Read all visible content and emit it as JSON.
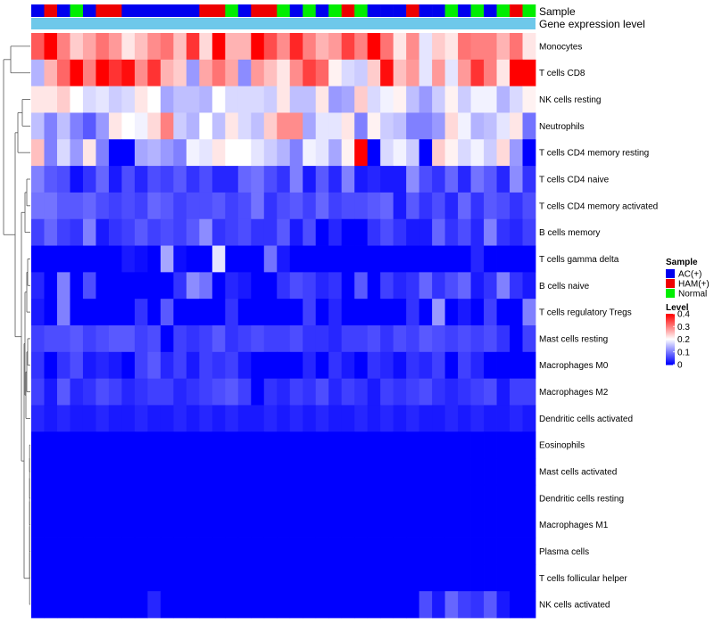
{
  "chart_data": {
    "type": "heatmap",
    "title": "",
    "annotations": {
      "sample_label": "Sample",
      "gene_expression_label": "Gene expression level",
      "gene_expression_color": "#6ec8ea",
      "sample_groups": [
        "AC",
        "HAM",
        "AC",
        "Normal",
        "AC",
        "HAM",
        "HAM",
        "AC",
        "AC",
        "AC",
        "AC",
        "AC",
        "AC",
        "HAM",
        "HAM",
        "Normal",
        "AC",
        "HAM",
        "HAM",
        "Normal",
        "AC",
        "Normal",
        "AC",
        "Normal",
        "HAM",
        "Normal",
        "AC",
        "AC",
        "AC",
        "HAM",
        "AC",
        "AC",
        "Normal",
        "AC",
        "Normal",
        "AC",
        "Normal",
        "HAM",
        "Normal"
      ]
    },
    "rows": [
      "Monocytes",
      "T cells CD8",
      "NK cells resting",
      "Neutrophils",
      "T cells CD4 memory resting",
      "T cells CD4 naive",
      "T cells CD4 memory activated",
      "B cells memory",
      "T cells gamma delta",
      "B cells naive",
      "T cells regulatory  Tregs",
      "Mast cells resting",
      "Macrophages M0",
      "Macrophages M2",
      "Dendritic cells activated",
      "Eosinophils",
      "Mast cells activated",
      "Dendritic cells resting",
      "Macrophages M1",
      "Plasma cells",
      "T cells follicular helper",
      "NK cells activated"
    ],
    "n_columns": 39,
    "values": [
      [
        0.33,
        0.4,
        0.3,
        0.24,
        0.27,
        0.31,
        0.28,
        0.22,
        0.25,
        0.29,
        0.31,
        0.25,
        0.36,
        0.23,
        0.4,
        0.26,
        0.26,
        0.4,
        0.34,
        0.29,
        0.37,
        0.3,
        0.26,
        0.28,
        0.35,
        0.3,
        0.4,
        0.31,
        0.22,
        0.29,
        0.18,
        0.24,
        0.22,
        0.31,
        0.3,
        0.3,
        0.26,
        0.31,
        0.22
      ],
      [
        0.14,
        0.26,
        0.32,
        0.4,
        0.3,
        0.4,
        0.36,
        0.39,
        0.29,
        0.36,
        0.26,
        0.24,
        0.12,
        0.27,
        0.31,
        0.27,
        0.11,
        0.28,
        0.25,
        0.22,
        0.29,
        0.35,
        0.32,
        0.21,
        0.17,
        0.16,
        0.24,
        0.39,
        0.25,
        0.28,
        0.18,
        0.28,
        0.18,
        0.28,
        0.36,
        0.3,
        0.22,
        0.4,
        0.4
      ],
      [
        0.22,
        0.22,
        0.24,
        0.2,
        0.17,
        0.18,
        0.16,
        0.17,
        0.22,
        0.2,
        0.13,
        0.15,
        0.15,
        0.14,
        0.2,
        0.17,
        0.17,
        0.17,
        0.16,
        0.22,
        0.15,
        0.15,
        0.22,
        0.12,
        0.13,
        0.24,
        0.17,
        0.19,
        0.21,
        0.15,
        0.12,
        0.16,
        0.21,
        0.16,
        0.19,
        0.19,
        0.14,
        0.17,
        0.21
      ],
      [
        0.15,
        0.1,
        0.15,
        0.1,
        0.07,
        0.12,
        0.22,
        0.2,
        0.19,
        0.23,
        0.3,
        0.16,
        0.14,
        0.2,
        0.15,
        0.22,
        0.17,
        0.15,
        0.24,
        0.29,
        0.29,
        0.13,
        0.18,
        0.18,
        0.22,
        0.1,
        0.21,
        0.16,
        0.15,
        0.1,
        0.1,
        0.12,
        0.23,
        0.19,
        0.14,
        0.15,
        0.18,
        0.22,
        0.09
      ],
      [
        0.25,
        0.1,
        0.17,
        0.12,
        0.22,
        0.1,
        0.0,
        0.0,
        0.13,
        0.14,
        0.12,
        0.1,
        0.19,
        0.18,
        0.22,
        0.2,
        0.2,
        0.18,
        0.16,
        0.14,
        0.1,
        0.19,
        0.18,
        0.13,
        0.21,
        0.4,
        0.0,
        0.17,
        0.19,
        0.16,
        0.0,
        0.24,
        0.21,
        0.17,
        0.19,
        0.16,
        0.23,
        0.12,
        0.0
      ],
      [
        0.1,
        0.07,
        0.06,
        0.01,
        0.04,
        0.08,
        0.02,
        0.06,
        0.03,
        0.06,
        0.05,
        0.07,
        0.04,
        0.06,
        0.03,
        0.03,
        0.08,
        0.09,
        0.06,
        0.04,
        0.1,
        0.02,
        0.07,
        0.03,
        0.1,
        0.02,
        0.03,
        0.02,
        0.02,
        0.11,
        0.06,
        0.04,
        0.08,
        0.03,
        0.09,
        0.07,
        0.03,
        0.11,
        0.04
      ],
      [
        0.09,
        0.09,
        0.07,
        0.07,
        0.08,
        0.06,
        0.05,
        0.06,
        0.05,
        0.08,
        0.07,
        0.05,
        0.06,
        0.06,
        0.07,
        0.05,
        0.06,
        0.09,
        0.04,
        0.06,
        0.07,
        0.05,
        0.08,
        0.05,
        0.06,
        0.06,
        0.07,
        0.08,
        0.02,
        0.07,
        0.04,
        0.06,
        0.03,
        0.08,
        0.04,
        0.07,
        0.06,
        0.04,
        0.06
      ],
      [
        0.05,
        0.08,
        0.05,
        0.04,
        0.1,
        0.02,
        0.04,
        0.05,
        0.07,
        0.05,
        0.06,
        0.05,
        0.07,
        0.11,
        0.04,
        0.05,
        0.06,
        0.04,
        0.04,
        0.07,
        0.02,
        0.06,
        0.0,
        0.03,
        0.0,
        0.0,
        0.04,
        0.06,
        0.04,
        0.02,
        0.02,
        0.08,
        0.04,
        0.06,
        0.03,
        0.1,
        0.04,
        0.03,
        0.05
      ],
      [
        0.0,
        0.0,
        0.0,
        0.0,
        0.0,
        0.0,
        0.0,
        0.02,
        0.01,
        0.0,
        0.13,
        0.01,
        0.0,
        0.0,
        0.18,
        0.0,
        0.0,
        0.0,
        0.09,
        0.02,
        0.0,
        0.0,
        0.0,
        0.0,
        0.0,
        0.0,
        0.0,
        0.0,
        0.0,
        0.0,
        0.0,
        0.0,
        0.0,
        0.0,
        0.03,
        0.0,
        0.0,
        0.0,
        0.0
      ],
      [
        0.03,
        0.0,
        0.1,
        0.0,
        0.06,
        0.0,
        0.0,
        0.0,
        0.0,
        0.0,
        0.0,
        0.04,
        0.11,
        0.09,
        0.0,
        0.03,
        0.02,
        0.0,
        0.0,
        0.04,
        0.06,
        0.05,
        0.03,
        0.04,
        0.0,
        0.07,
        0.0,
        0.05,
        0.03,
        0.04,
        0.08,
        0.04,
        0.06,
        0.08,
        0.02,
        0.04,
        0.1,
        0.04,
        0.02
      ],
      [
        0.02,
        0.0,
        0.1,
        0.0,
        0.0,
        0.0,
        0.0,
        0.0,
        0.04,
        0.0,
        0.07,
        0.0,
        0.0,
        0.0,
        0.0,
        0.04,
        0.0,
        0.0,
        0.0,
        0.0,
        0.0,
        0.05,
        0.0,
        0.03,
        0.0,
        0.0,
        0.0,
        0.0,
        0.0,
        0.04,
        0.0,
        0.12,
        0.0,
        0.02,
        0.0,
        0.05,
        0.0,
        0.0,
        0.1
      ],
      [
        0.05,
        0.06,
        0.06,
        0.07,
        0.05,
        0.06,
        0.07,
        0.07,
        0.05,
        0.06,
        0.0,
        0.05,
        0.04,
        0.05,
        0.07,
        0.04,
        0.05,
        0.06,
        0.05,
        0.05,
        0.06,
        0.04,
        0.04,
        0.03,
        0.05,
        0.05,
        0.06,
        0.04,
        0.06,
        0.05,
        0.07,
        0.06,
        0.05,
        0.06,
        0.05,
        0.06,
        0.04,
        0.0,
        0.05
      ],
      [
        0.04,
        0.0,
        0.04,
        0.06,
        0.02,
        0.03,
        0.02,
        0.0,
        0.05,
        0.07,
        0.03,
        0.05,
        0.02,
        0.05,
        0.04,
        0.05,
        0.02,
        0.0,
        0.0,
        0.0,
        0.0,
        0.03,
        0.0,
        0.04,
        0.02,
        0.0,
        0.04,
        0.03,
        0.01,
        0.04,
        0.03,
        0.05,
        0.0,
        0.05,
        0.03,
        0.0,
        0.0,
        0.0,
        0.0
      ],
      [
        0.05,
        0.02,
        0.07,
        0.03,
        0.04,
        0.06,
        0.05,
        0.03,
        0.04,
        0.05,
        0.05,
        0.03,
        0.04,
        0.05,
        0.06,
        0.07,
        0.05,
        0.0,
        0.04,
        0.03,
        0.05,
        0.04,
        0.06,
        0.03,
        0.05,
        0.04,
        0.02,
        0.05,
        0.04,
        0.05,
        0.06,
        0.04,
        0.03,
        0.04,
        0.05,
        0.06,
        0.02,
        0.05,
        0.05
      ],
      [
        0.03,
        0.02,
        0.03,
        0.02,
        0.02,
        0.03,
        0.02,
        0.02,
        0.03,
        0.02,
        0.02,
        0.03,
        0.02,
        0.03,
        0.02,
        0.03,
        0.02,
        0.02,
        0.03,
        0.02,
        0.03,
        0.02,
        0.03,
        0.02,
        0.02,
        0.03,
        0.02,
        0.03,
        0.02,
        0.03,
        0.02,
        0.02,
        0.03,
        0.02,
        0.03,
        0.02,
        0.02,
        0.03,
        0.02
      ],
      [
        0,
        0,
        0,
        0,
        0,
        0,
        0,
        0,
        0,
        0,
        0,
        0,
        0,
        0,
        0,
        0,
        0,
        0,
        0,
        0,
        0,
        0,
        0,
        0,
        0,
        0,
        0,
        0,
        0,
        0,
        0,
        0,
        0,
        0,
        0,
        0,
        0,
        0,
        0
      ],
      [
        0,
        0,
        0,
        0,
        0,
        0,
        0,
        0,
        0,
        0,
        0,
        0,
        0,
        0,
        0,
        0,
        0,
        0,
        0,
        0,
        0,
        0,
        0,
        0,
        0,
        0,
        0,
        0,
        0,
        0,
        0,
        0,
        0,
        0,
        0,
        0,
        0,
        0,
        0
      ],
      [
        0,
        0,
        0,
        0,
        0,
        0,
        0,
        0,
        0,
        0,
        0,
        0,
        0,
        0,
        0,
        0,
        0,
        0,
        0,
        0,
        0,
        0,
        0,
        0,
        0,
        0,
        0,
        0,
        0,
        0,
        0,
        0,
        0,
        0,
        0,
        0,
        0,
        0,
        0
      ],
      [
        0,
        0,
        0,
        0,
        0,
        0,
        0,
        0,
        0,
        0,
        0,
        0,
        0,
        0,
        0,
        0,
        0,
        0,
        0,
        0,
        0,
        0,
        0,
        0,
        0,
        0,
        0,
        0,
        0,
        0,
        0,
        0,
        0,
        0,
        0,
        0,
        0,
        0,
        0
      ],
      [
        0,
        0,
        0,
        0,
        0,
        0,
        0,
        0,
        0,
        0,
        0,
        0,
        0,
        0,
        0,
        0,
        0,
        0,
        0,
        0,
        0,
        0,
        0,
        0,
        0,
        0,
        0,
        0,
        0,
        0,
        0,
        0,
        0,
        0,
        0,
        0,
        0,
        0,
        0
      ],
      [
        0,
        0,
        0,
        0,
        0,
        0,
        0,
        0,
        0,
        0,
        0,
        0,
        0,
        0,
        0,
        0,
        0,
        0,
        0,
        0,
        0,
        0,
        0,
        0,
        0,
        0,
        0,
        0,
        0,
        0,
        0,
        0,
        0,
        0,
        0,
        0,
        0,
        0,
        0
      ],
      [
        0,
        0,
        0,
        0,
        0,
        0,
        0,
        0,
        0,
        0.03,
        0,
        0,
        0,
        0,
        0,
        0,
        0,
        0,
        0,
        0,
        0,
        0,
        0,
        0,
        0,
        0,
        0,
        0,
        0,
        0,
        0.06,
        0.02,
        0.08,
        0.05,
        0.04,
        0.07,
        0.02,
        0,
        0
      ]
    ],
    "color_scale": {
      "min": 0,
      "mid": 0.2,
      "max": 0.4,
      "low": "#0000ff",
      "midColor": "#ffffff",
      "high": "#ff0000"
    },
    "legend": {
      "position": "right",
      "sample_title": "Sample",
      "sample_entries": [
        {
          "label": "AC(+)",
          "color": "#0000ee"
        },
        {
          "label": "HAM(+)",
          "color": "#ee0000"
        },
        {
          "label": "Normal",
          "color": "#00ee00"
        }
      ],
      "level_title": "Level",
      "level_ticks": [
        "0.4",
        "0.3",
        "0.2",
        "0.1",
        "0"
      ],
      "level_tick_values": [
        0.4,
        0.3,
        0.2,
        0.1,
        0
      ]
    }
  }
}
